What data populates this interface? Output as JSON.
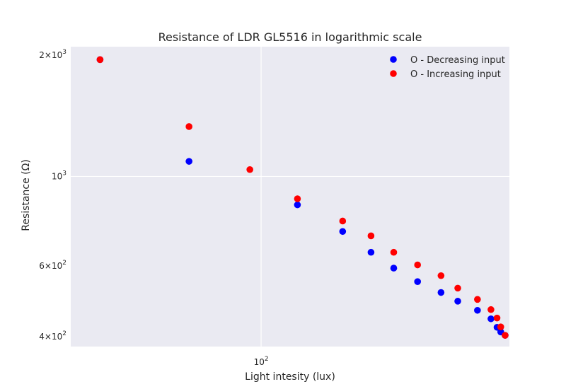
{
  "chart_data": {
    "type": "scatter",
    "title": "Resistance of LDR GL5516 in logarithmic scale",
    "xlabel": "Light intesity (lux)",
    "ylabel": "Resistance (Ω)",
    "xscale": "log",
    "yscale": "log",
    "xlim": [
      42,
      310
    ],
    "ylim": [
      378,
      2100
    ],
    "x_ticks": [
      {
        "value": 100,
        "base": "10",
        "exp": "2"
      }
    ],
    "y_ticks": [
      {
        "value": 400,
        "mant": "4",
        "base": "10",
        "exp": "2"
      },
      {
        "value": 600,
        "mant": "6",
        "base": "10",
        "exp": "2"
      },
      {
        "value": 1000,
        "mant": "",
        "base": "10",
        "exp": "3"
      },
      {
        "value": 2000,
        "mant": "2",
        "base": "10",
        "exp": "3"
      }
    ],
    "grid": true,
    "legend_position": "top-right",
    "background": "#eaeaf2",
    "series": [
      {
        "name": "O - Decreasing input",
        "color": "#0000ff",
        "x": [
          48,
          72,
          118,
          145,
          165,
          183,
          204,
          227,
          245,
          268,
          285,
          293,
          298,
          304
        ],
        "y": [
          1950,
          1090,
          850,
          730,
          648,
          592,
          548,
          515,
          490,
          465,
          443,
          422,
          411,
          403
        ]
      },
      {
        "name": "O - Increasing input",
        "color": "#ff0000",
        "x": [
          48,
          72,
          95,
          118,
          145,
          165,
          183,
          204,
          227,
          245,
          268,
          285,
          293,
          298,
          304
        ],
        "y": [
          1950,
          1330,
          1040,
          880,
          775,
          712,
          648,
          603,
          567,
          528,
          495,
          467,
          445,
          423,
          403
        ]
      }
    ]
  }
}
